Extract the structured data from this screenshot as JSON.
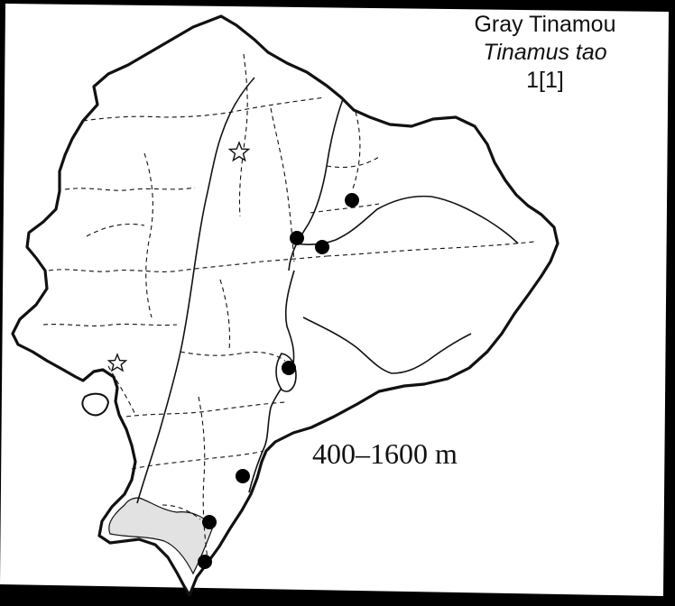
{
  "map": {
    "common_name": "Gray Tinamou",
    "scientific_name": "Tinamus tao",
    "record_count": "1[1]",
    "elevation_range": "400–1600 m",
    "colors": {
      "background": "#000000",
      "paper": "#ffffff",
      "ink": "#111111",
      "range_shading": "#e2e2e2"
    },
    "symbols": {
      "record": "filled-circle",
      "city": "star-outline"
    }
  }
}
